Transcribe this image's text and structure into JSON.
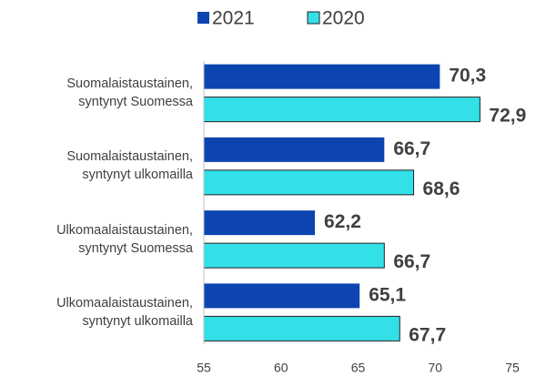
{
  "chart_data": {
    "type": "barh",
    "categories": [
      "Suomalaistaustainen,\nsyntynyt Suomessa",
      "Suomalaistaustainen,\nsyntynyt ulkomailla",
      "Ulkomaalaistaustainen,\nsyntynyt Suomessa",
      "Ulkomaalaistaustainen,\nsyntynyt ulkomailla"
    ],
    "series": [
      {
        "name": "2021",
        "color": "#0d45b0",
        "values": [
          70.3,
          66.7,
          62.2,
          65.1
        ],
        "value_labels": [
          "70,3",
          "66,7",
          "62,2",
          "65,1"
        ]
      },
      {
        "name": "2020",
        "color": "#33e0e8",
        "values": [
          72.9,
          68.6,
          66.7,
          67.7
        ],
        "value_labels": [
          "72,9",
          "68,6",
          "66,7",
          "67,7"
        ]
      }
    ],
    "xlim": [
      55,
      75
    ],
    "xticks": [
      55,
      60,
      65,
      70,
      75
    ],
    "legend": "top"
  }
}
